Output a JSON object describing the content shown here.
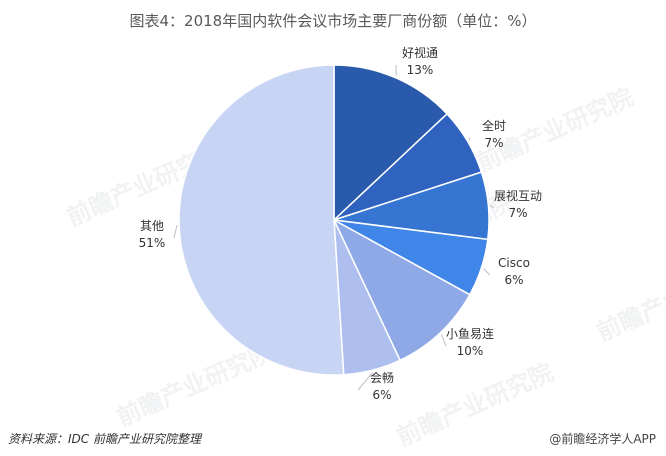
{
  "chart_data": {
    "type": "pie",
    "title": "图表4：2018年国内软件会议市场主要厂商份额（单位：%）",
    "slices": [
      {
        "name": "好视通",
        "value": 13,
        "label": "13%",
        "color": "#2a5aab"
      },
      {
        "name": "全时",
        "value": 7,
        "label": "7%",
        "color": "#3063c0"
      },
      {
        "name": "展视互动",
        "value": 7,
        "label": "7%",
        "color": "#3775d3"
      },
      {
        "name": "Cisco",
        "value": 6,
        "label": "6%",
        "color": "#4085e8"
      },
      {
        "name": "小鱼易连",
        "value": 10,
        "label": "10%",
        "color": "#8fa9e6"
      },
      {
        "name": "会畅",
        "value": 6,
        "label": "6%",
        "color": "#aebfef"
      },
      {
        "name": "其他",
        "value": 51,
        "label": "51%",
        "color": "#c8d4f4"
      }
    ]
  },
  "footer": {
    "source": "资料来源：IDC  前瞻产业研究院整理",
    "brand": "@前瞻经济学人APP"
  },
  "watermark": "前瞻产业研究院"
}
